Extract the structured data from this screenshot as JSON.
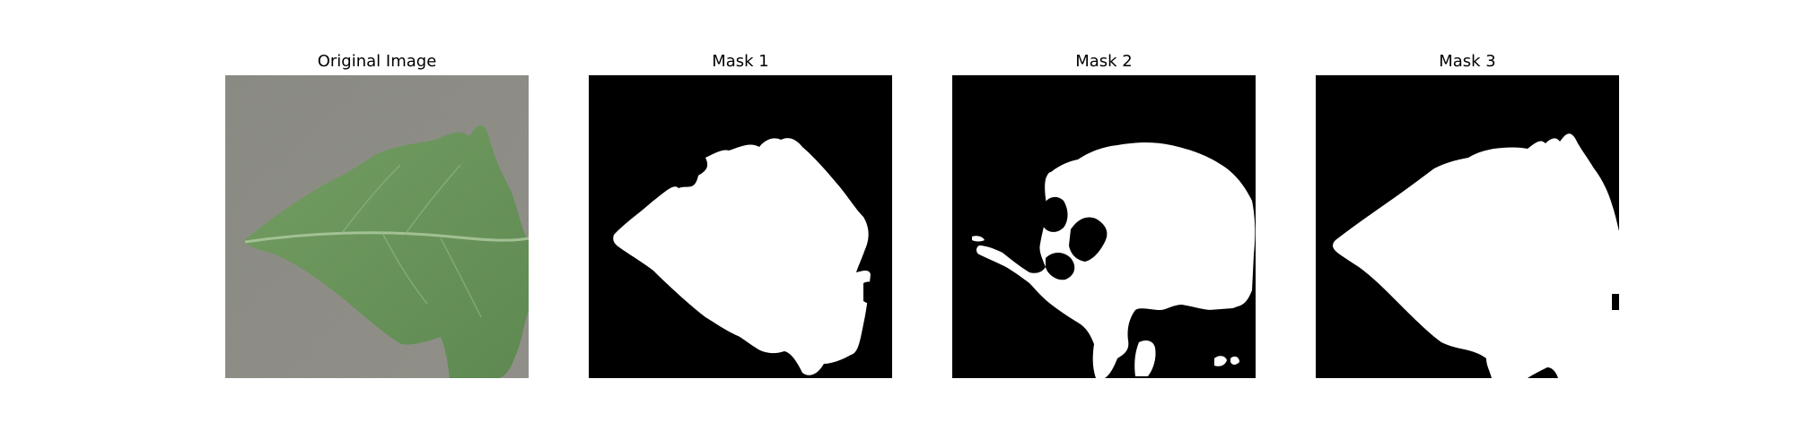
{
  "panels": [
    {
      "title": "Original Image"
    },
    {
      "title": "Mask 1"
    },
    {
      "title": "Mask 2"
    },
    {
      "title": "Mask 3"
    }
  ],
  "colors": {
    "background": "#ffffff",
    "mask_background": "#000000",
    "mask_foreground": "#ffffff",
    "surface": "#8f8f89",
    "leaf": "#6f9a5f",
    "leaf_dark": "#5c8650",
    "vein": "#a9c79a"
  }
}
